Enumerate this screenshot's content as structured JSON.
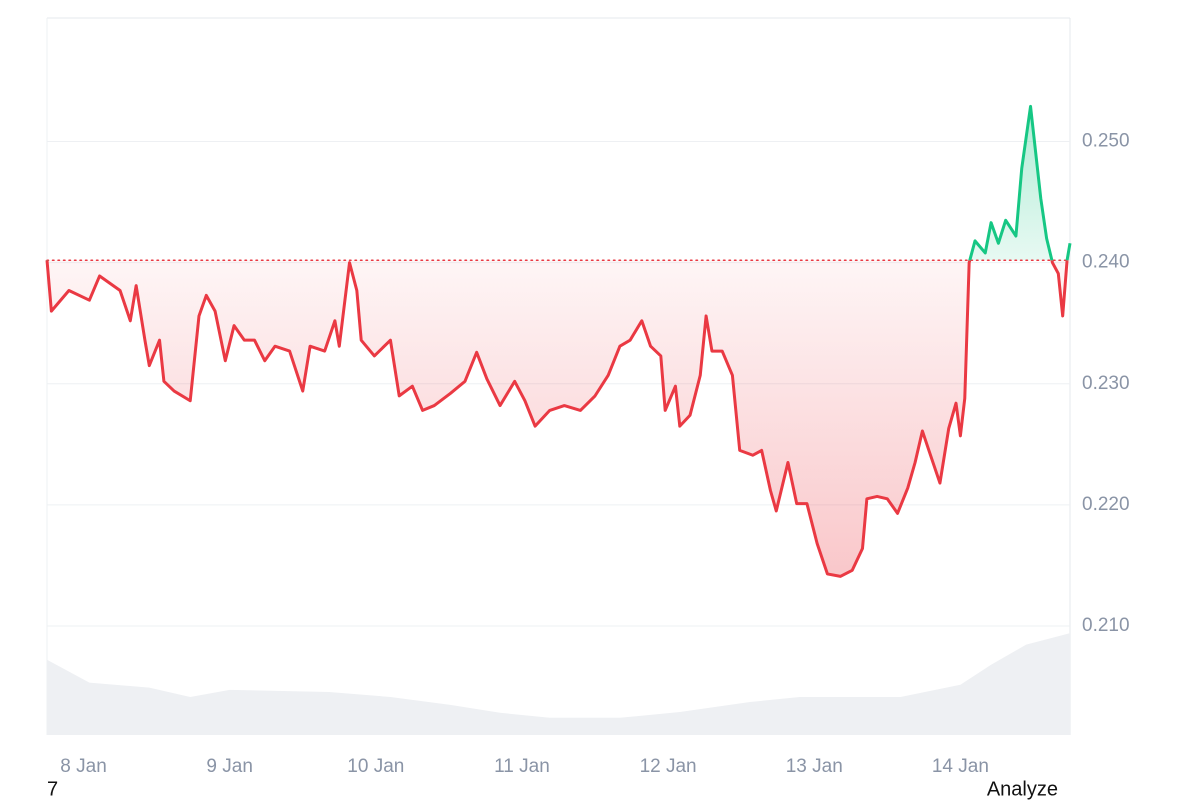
{
  "chart_data": {
    "type": "line",
    "x": [
      7.75,
      7.78,
      7.9,
      8.04,
      8.11,
      8.25,
      8.32,
      8.36,
      8.42,
      8.45,
      8.52,
      8.55,
      8.62,
      8.73,
      8.79,
      8.84,
      8.9,
      8.97,
      9.03,
      9.1,
      9.17,
      9.24,
      9.31,
      9.41,
      9.5,
      9.55,
      9.65,
      9.72,
      9.75,
      9.82,
      9.87,
      9.9,
      9.99,
      10.1,
      10.16,
      10.25,
      10.32,
      10.4,
      10.51,
      10.61,
      10.69,
      10.76,
      10.85,
      10.95,
      11.02,
      11.09,
      11.19,
      11.29,
      11.4,
      11.5,
      11.59,
      11.67,
      11.74,
      11.82,
      11.88,
      11.95,
      11.98,
      12.05,
      12.08,
      12.15,
      12.22,
      12.26,
      12.3,
      12.37,
      12.44,
      12.49,
      12.58,
      12.64,
      12.7,
      12.74,
      12.82,
      12.88,
      12.95,
      13.02,
      13.09,
      13.18,
      13.26,
      13.33,
      13.36,
      13.43,
      13.5,
      13.57,
      13.64,
      13.69,
      13.74,
      13.79,
      13.86,
      13.92,
      13.97,
      14.0,
      14.03,
      14.06,
      14.1,
      14.17,
      14.21,
      14.26,
      14.31,
      14.38,
      14.42,
      14.48,
      14.55,
      14.59,
      14.63,
      14.67,
      14.7,
      14.73,
      14.75
    ],
    "values": [
      0.2402,
      0.236,
      0.2377,
      0.2369,
      0.2389,
      0.2377,
      0.2352,
      0.2381,
      0.2336,
      0.2315,
      0.2336,
      0.2302,
      0.2294,
      0.2286,
      0.2356,
      0.2373,
      0.236,
      0.2319,
      0.2348,
      0.2336,
      0.2336,
      0.2319,
      0.2331,
      0.2327,
      0.2294,
      0.2331,
      0.2327,
      0.2352,
      0.2331,
      0.24,
      0.2377,
      0.2336,
      0.2323,
      0.2336,
      0.229,
      0.2298,
      0.2278,
      0.2282,
      0.2292,
      0.2302,
      0.2326,
      0.2304,
      0.2282,
      0.2302,
      0.2286,
      0.2265,
      0.2278,
      0.2282,
      0.2278,
      0.229,
      0.2307,
      0.2331,
      0.2336,
      0.2352,
      0.2331,
      0.2323,
      0.2278,
      0.2298,
      0.2265,
      0.2274,
      0.2307,
      0.2356,
      0.2327,
      0.2327,
      0.2307,
      0.2245,
      0.2241,
      0.2245,
      0.2212,
      0.2195,
      0.2235,
      0.2201,
      0.2201,
      0.2168,
      0.2143,
      0.2141,
      0.2146,
      0.2164,
      0.2205,
      0.2207,
      0.2205,
      0.2193,
      0.2214,
      0.2235,
      0.2261,
      0.2243,
      0.2218,
      0.2263,
      0.2284,
      0.2257,
      0.2288,
      0.24,
      0.2418,
      0.2408,
      0.2433,
      0.2416,
      0.2435,
      0.2422,
      0.2478,
      0.2529,
      0.2453,
      0.242,
      0.24,
      0.2391,
      0.2356,
      0.2402,
      0.2416
    ],
    "baseline": 0.2402,
    "color_below": "#ea3943",
    "color_above": "#16c784",
    "volume": {
      "color": "#eef0f3",
      "x": [
        7.75,
        8.04,
        8.45,
        8.73,
        9.0,
        9.68,
        10.1,
        10.51,
        10.85,
        11.19,
        11.67,
        12.08,
        12.56,
        12.9,
        13.59,
        14.0,
        14.21,
        14.45,
        14.75
      ],
      "values": [
        10.5,
        7.3,
        6.6,
        5.3,
        6.3,
        6.0,
        5.3,
        4.2,
        3.1,
        2.4,
        2.4,
        3.2,
        4.6,
        5.3,
        5.3,
        7.0,
        9.8,
        12.6,
        14.2
      ]
    },
    "xlim": [
      7.75,
      14.75
    ],
    "xticks": [
      {
        "value": 8,
        "label": "8 Jan"
      },
      {
        "value": 9,
        "label": "9 Jan"
      },
      {
        "value": 10,
        "label": "10 Jan"
      },
      {
        "value": 11,
        "label": "11 Jan"
      },
      {
        "value": 12,
        "label": "12 Jan"
      },
      {
        "value": 13,
        "label": "13 Jan"
      },
      {
        "value": 14,
        "label": "14 Jan"
      }
    ],
    "ylim": [
      0.201,
      0.2602
    ],
    "yticks": [
      {
        "value": 0.21,
        "label": "0.210"
      },
      {
        "value": 0.22,
        "label": "0.220"
      },
      {
        "value": 0.23,
        "label": "0.230"
      },
      {
        "value": 0.24,
        "label": "0.240"
      },
      {
        "value": 0.25,
        "label": "0.250"
      }
    ],
    "y2lim": [
      0,
      100
    ],
    "grid": true
  },
  "footer": {
    "left": "7",
    "right": "Analyze"
  }
}
